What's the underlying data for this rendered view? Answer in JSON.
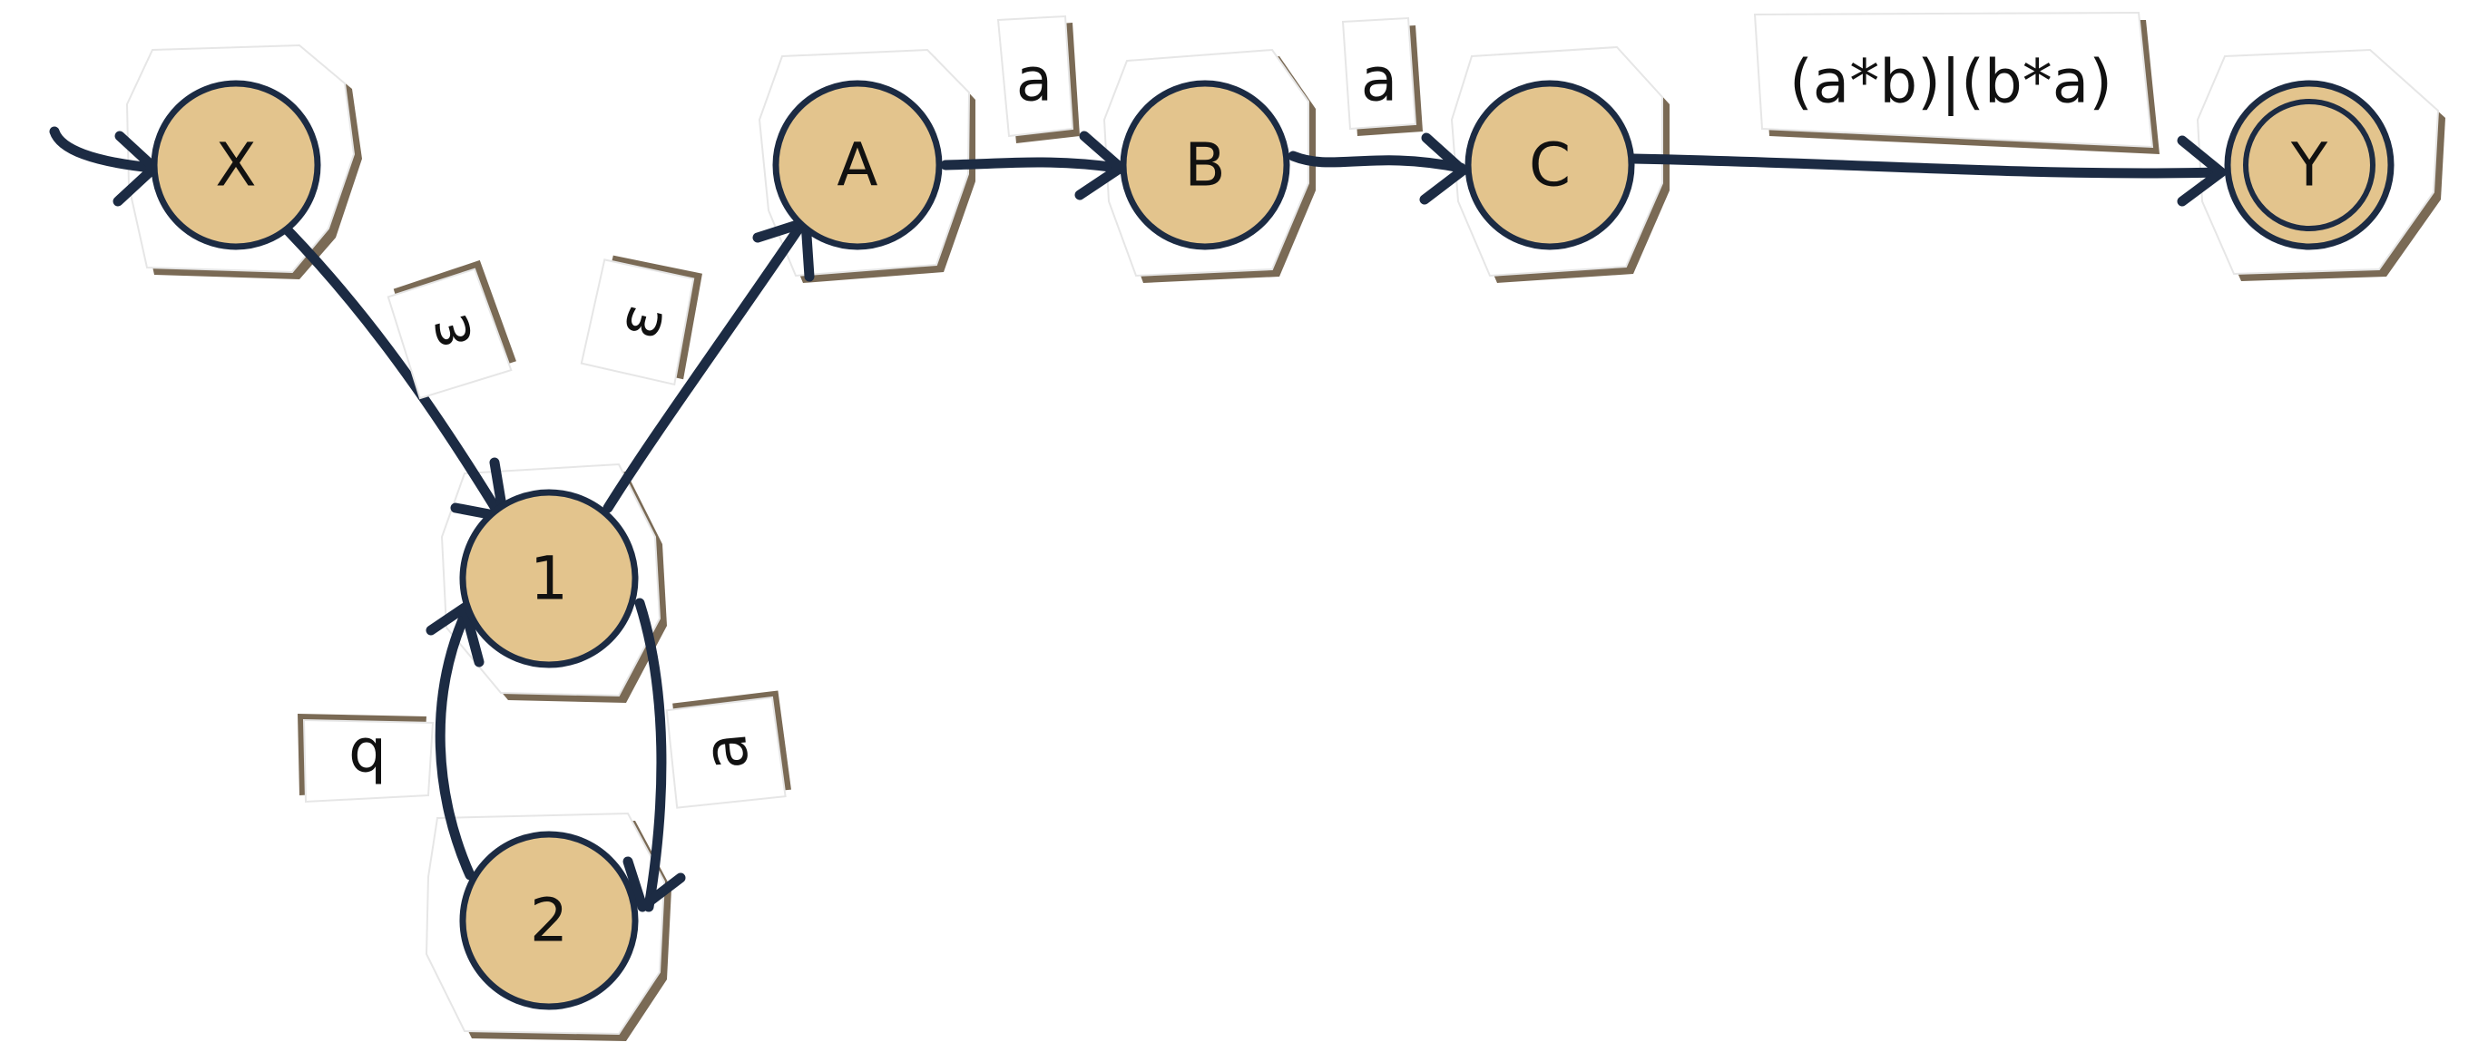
{
  "states": {
    "X": "X",
    "one": "1",
    "two": "2",
    "A": "A",
    "B": "B",
    "C": "C",
    "Y": "Y"
  },
  "transitions": {
    "x_to_1": "ε",
    "one_to_A": "ε",
    "one_to_2": "a",
    "two_to_1": "b",
    "A_to_B": "a",
    "B_to_C": "a",
    "C_to_Y": "(a*b)|(b*a)"
  },
  "start_state": "X",
  "accepting_states": [
    "Y"
  ],
  "colors": {
    "state_fill": "#e3c48d",
    "stroke": "#1c2b43",
    "paper_shadow": "#7a6a55"
  }
}
